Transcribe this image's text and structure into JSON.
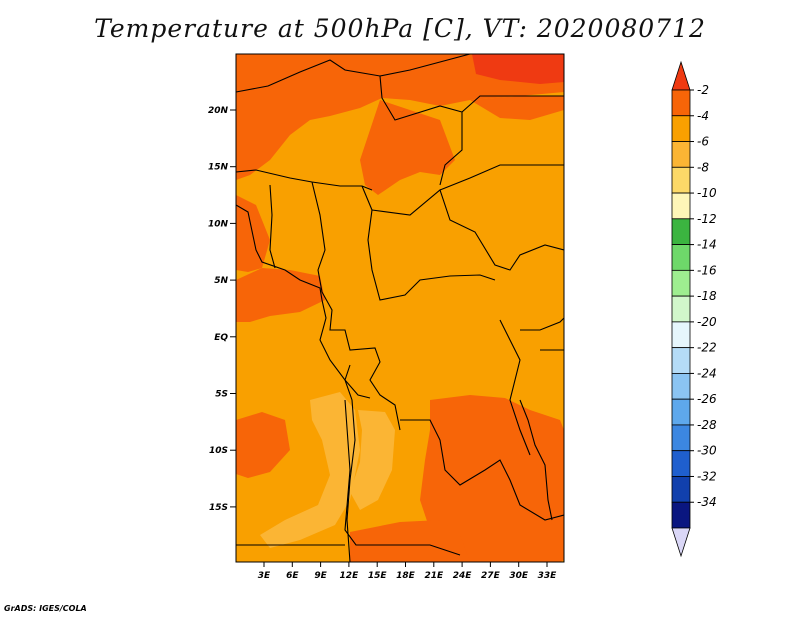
{
  "title": "Temperature at 500hPa [C], VT: 2020080712",
  "credit": "GrADS: IGES/COLA",
  "map": {
    "lat_ticks": [
      "20N",
      "15N",
      "10N",
      "5N",
      "EQ",
      "5S",
      "10S",
      "15S"
    ],
    "lon_ticks": [
      "3E",
      "6E",
      "9E",
      "12E",
      "15E",
      "18E",
      "21E",
      "24E",
      "27E",
      "30E",
      "33E"
    ]
  },
  "colorbar": {
    "levels": [
      "-2",
      "-4",
      "-6",
      "-8",
      "-10",
      "-12",
      "-14",
      "-16",
      "-18",
      "-20",
      "-22",
      "-24",
      "-26",
      "-28",
      "-30",
      "-32",
      "-34"
    ],
    "colors": [
      "#ef3a12",
      "#f76508",
      "#f9a000",
      "#fbb534",
      "#fcd968",
      "#fef6b8",
      "#3bb440",
      "#6ed86a",
      "#9eee90",
      "#d1f7cb",
      "#e6f6fc",
      "#b5dcf7",
      "#8bc4f2",
      "#5ea8ec",
      "#3c87e1",
      "#1f5fce",
      "#1140ad",
      "#0a1680",
      "#dad7f7"
    ]
  },
  "field_colors": {
    "band_minus4": "#f76508",
    "band_minus6": "#f9a000",
    "band_minus8": "#fbb534",
    "band_minus2": "#ef3a12"
  }
}
